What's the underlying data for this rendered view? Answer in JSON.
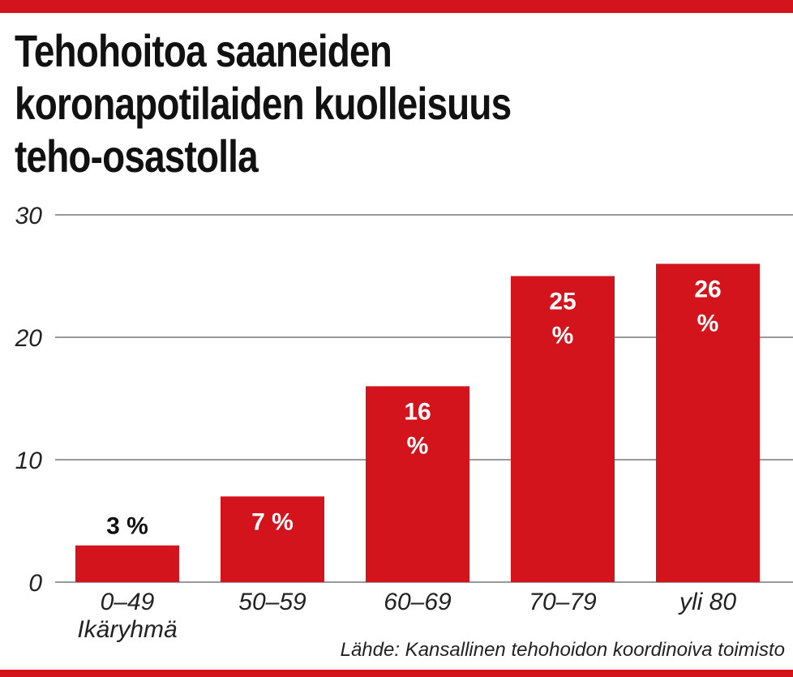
{
  "title_lines": [
    "Tehohoitoa saaneiden",
    "koronapotilaiden kuolleisuus",
    "teho-osastolla"
  ],
  "source": "Lähde: Kansallinen tehohoidon koordinoiva toimisto",
  "colors": {
    "bar": "#d4141c",
    "grid": "#999999"
  },
  "chart_data": {
    "type": "bar",
    "title": "Tehohoitoa saaneiden koronapotilaiden kuolleisuus teho-osastolla",
    "xlabel": "Ikäryhmä",
    "ylabel": "",
    "ylim": [
      0,
      30
    ],
    "yticks": [
      0,
      10,
      20,
      30
    ],
    "grid": true,
    "categories": [
      "0–49",
      "50–59",
      "60–69",
      "70–79",
      "yli 80"
    ],
    "values": [
      3,
      7,
      16,
      25,
      26
    ],
    "data_labels": [
      [
        "3 %"
      ],
      [
        "7 %"
      ],
      [
        "16",
        "%"
      ],
      [
        "25",
        "%"
      ],
      [
        "26",
        "%"
      ]
    ]
  }
}
